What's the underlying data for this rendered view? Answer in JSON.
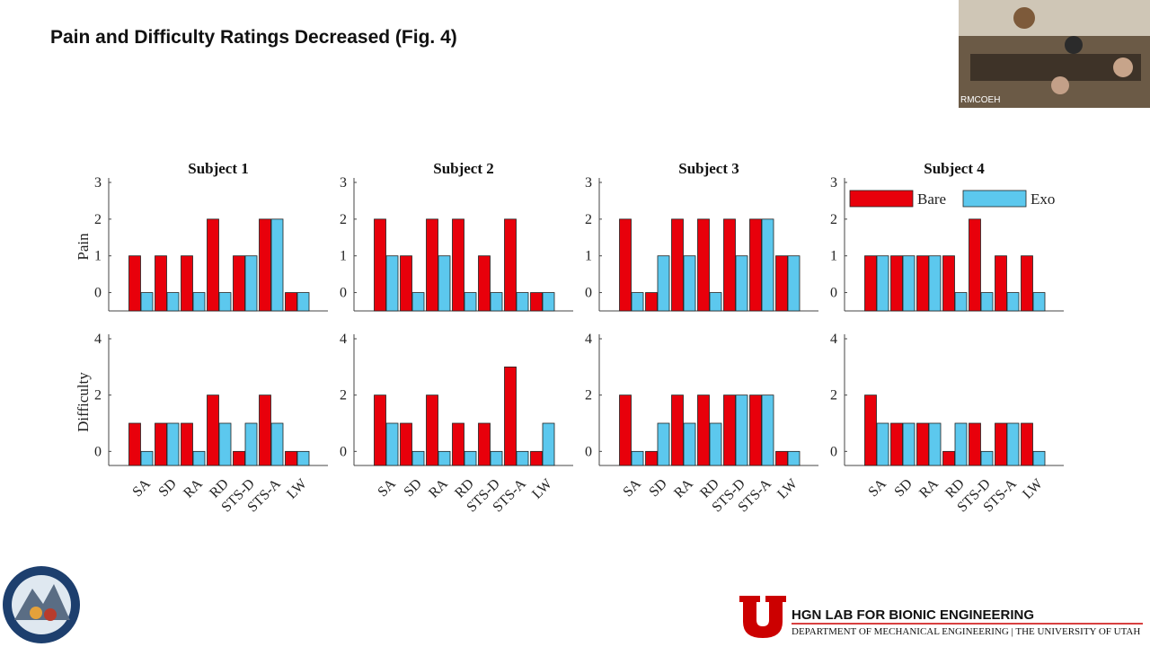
{
  "slide": {
    "title": "Pain and Difficulty Ratings Decreased (Fig. 4)",
    "webcam_label": "RMCOEH",
    "footer": {
      "lab": "HGN LAB FOR BIONIC ENGINEERING",
      "department": "DEPARTMENT OF MECHANICAL ENGINEERING | THE UNIVERSITY OF UTAH"
    }
  },
  "chart_data": [
    {
      "type": "bar",
      "title": "Subject 1",
      "ylabel": "Pain",
      "ylim": [
        -0.5,
        3
      ],
      "yticks": [
        0,
        1,
        2,
        3
      ],
      "series": [
        {
          "color": "#e8000b",
          "values": [
            1,
            1,
            1,
            2,
            1,
            2,
            0
          ]
        },
        {
          "color": "#5cc8ee",
          "values": [
            0,
            0,
            0,
            0,
            1,
            2,
            0
          ]
        }
      ]
    },
    {
      "type": "bar",
      "ylabel": "Difficulty",
      "ylim": [
        -0.5,
        4
      ],
      "yticks": [
        0,
        2,
        4
      ],
      "categories": [
        "SA",
        "SD",
        "RA",
        "RD",
        "STS-D",
        "STS-A",
        "LW"
      ],
      "series": [
        {
          "color": "#e8000b",
          "values": [
            1,
            1,
            1,
            2,
            0,
            2,
            0
          ]
        },
        {
          "color": "#5cc8ee",
          "values": [
            0,
            1,
            0,
            1,
            1,
            1,
            0
          ]
        }
      ]
    },
    {
      "type": "bar",
      "title": "Subject 2",
      "ylim": [
        -0.5,
        3
      ],
      "yticks": [
        0,
        1,
        2,
        3
      ],
      "series": [
        {
          "color": "#e8000b",
          "values": [
            2,
            1,
            2,
            2,
            1,
            2,
            0
          ]
        },
        {
          "color": "#5cc8ee",
          "values": [
            1,
            0,
            1,
            0,
            0,
            0,
            0
          ]
        }
      ]
    },
    {
      "type": "bar",
      "ylim": [
        -0.5,
        4
      ],
      "yticks": [
        0,
        2,
        4
      ],
      "categories": [
        "SA",
        "SD",
        "RA",
        "RD",
        "STS-D",
        "STS-A",
        "LW"
      ],
      "series": [
        {
          "color": "#e8000b",
          "values": [
            2,
            1,
            2,
            1,
            1,
            3,
            0
          ]
        },
        {
          "color": "#5cc8ee",
          "values": [
            1,
            0,
            0,
            0,
            0,
            0,
            1
          ]
        }
      ]
    },
    {
      "type": "bar",
      "title": "Subject 3",
      "ylim": [
        -0.5,
        3
      ],
      "yticks": [
        0,
        1,
        2,
        3
      ],
      "series": [
        {
          "color": "#e8000b",
          "values": [
            2,
            0,
            2,
            2,
            2,
            2,
            1
          ]
        },
        {
          "color": "#5cc8ee",
          "values": [
            0,
            1,
            1,
            0,
            1,
            2,
            1
          ]
        }
      ]
    },
    {
      "type": "bar",
      "ylim": [
        -0.5,
        4
      ],
      "yticks": [
        0,
        2,
        4
      ],
      "categories": [
        "SA",
        "SD",
        "RA",
        "RD",
        "STS-D",
        "STS-A",
        "LW"
      ],
      "series": [
        {
          "color": "#e8000b",
          "values": [
            2,
            0,
            2,
            2,
            2,
            2,
            0
          ]
        },
        {
          "color": "#5cc8ee",
          "values": [
            0,
            1,
            1,
            1,
            2,
            2,
            0
          ]
        }
      ]
    },
    {
      "type": "bar",
      "title": "Subject 4",
      "ylim": [
        -0.5,
        3
      ],
      "yticks": [
        0,
        1,
        2,
        3
      ],
      "legend": "upper right",
      "series": [
        {
          "name": "Bare",
          "color": "#e8000b",
          "values": [
            1,
            1,
            1,
            1,
            2,
            1,
            1
          ]
        },
        {
          "name": "Exo",
          "color": "#5cc8ee",
          "values": [
            1,
            1,
            1,
            0,
            0,
            0,
            0
          ]
        }
      ]
    },
    {
      "type": "bar",
      "ylim": [
        -0.5,
        4
      ],
      "yticks": [
        0,
        2,
        4
      ],
      "categories": [
        "SA",
        "SD",
        "RA",
        "RD",
        "STS-D",
        "STS-A",
        "LW"
      ],
      "series": [
        {
          "color": "#e8000b",
          "values": [
            2,
            1,
            1,
            0,
            1,
            1,
            1
          ]
        },
        {
          "color": "#5cc8ee",
          "values": [
            1,
            1,
            1,
            1,
            0,
            1,
            0
          ]
        }
      ]
    }
  ]
}
